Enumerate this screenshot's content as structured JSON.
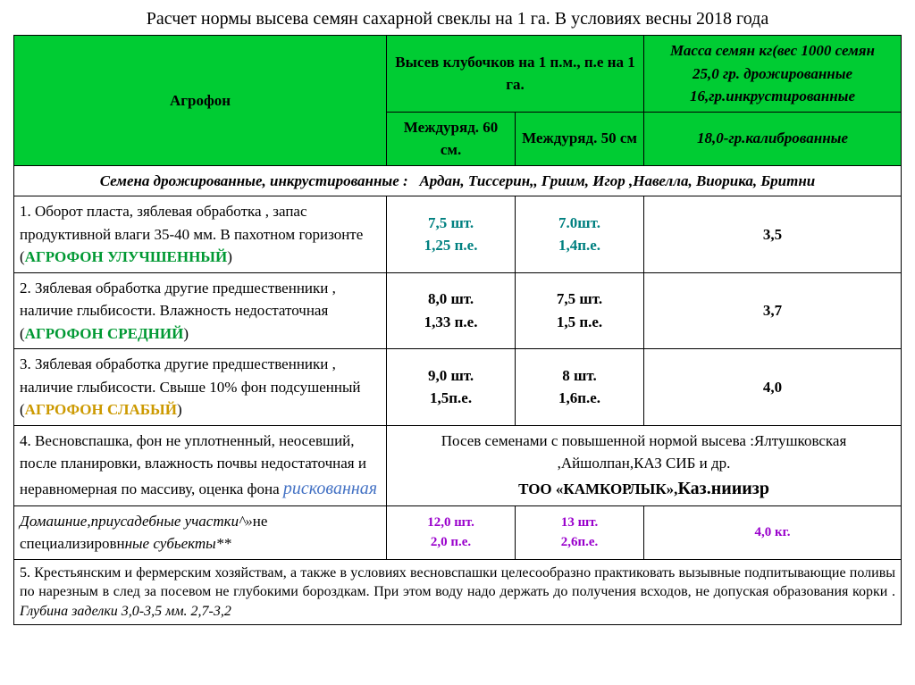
{
  "title": "Расчет нормы высева семян сахарной свеклы на 1 га. В условиях весны 2018 года",
  "colors": {
    "header_bg": "#00cc33",
    "green": "#009933",
    "teal": "#008080",
    "orange": "#cc9900",
    "purple": "#9900cc",
    "risk_blue": "#4472c4"
  },
  "header": {
    "agrofon": "Агрофон",
    "sowing": "Высев клубочков на 1 п.м., п.е на 1 га.",
    "mass_line1": "Масса семян кг(вес 1000 семян",
    "mass_line2": "25,0 гр. дрожированные",
    "mass_line3": "16,гр.инкрустированные",
    "inter60": "Междуряд. 60 см.",
    "inter50": "Междуряд. 50 см",
    "calibrated": "18,0-гр.калиброванные"
  },
  "subheader": {
    "prefix": "Семена дрожированные, инкрустированные :",
    "varieties": "Ардан,  Тиссерин,, Гриим,  Игор ,Навелла,  Виорика,   Бритни"
  },
  "rows": [
    {
      "desc_pre": "1. Оборот пласта, зяблевая обработка , запас продуктивной влаги 35-40 мм. В пахотном горизонте (",
      "fon": "АГРОФОН УЛУЧШЕННЫЙ",
      "desc_post": ")",
      "fon_color": "green-b",
      "v60_l1": "7,5 шт.",
      "v60_l2": "1,25 п.е.",
      "v50_l1": "7.0шт.",
      "v50_l2": "1,4п.е.",
      "val_color": "teal-b",
      "mass": "3,5"
    },
    {
      "desc_pre": "2. Зяблевая обработка другие предшественники , наличие глыбисости. Влажность недостаточная (",
      "fon": "АГРОФОН СРЕДНИЙ",
      "desc_post": ")",
      "fon_color": "green-b",
      "v60_l1": "8,0 шт.",
      "v60_l2": "1,33 п.е.",
      "v50_l1": "7,5 шт.",
      "v50_l2": "1,5 п.е.",
      "val_color": "",
      "mass": "3,7"
    },
    {
      "desc_pre": "3. Зяблевая обработка другие предшественники , наличие глыбисости. Свыше 10%  фон подсушенный (",
      "fon": "АГРОФОН СЛАБЫЙ",
      "desc_post": ")",
      "fon_color": "orange-b",
      "v60_l1": "9,0 шт.",
      "v60_l2": "1,5п.е.",
      "v50_l1": "8 шт.",
      "v50_l2": "1,6п.е.",
      "val_color": "",
      "mass": "4,0"
    }
  ],
  "row4": {
    "desc_main": "4. Весновспашка, фон не уплотненный, неосевший, после планировки, влажность почвы недостаточная и неравномерная по массиву, оценка фона   ",
    "risk": "рискованная",
    "merged_l1": "Посев  семенами  с повышенной нормой  высева :Ялтушковская ,Айшолпан,КАЗ СИБ и др.",
    "merged_l2_a": "ТОО «КАМКОРЛЫК»,",
    "merged_l2_b": "Каз.нииизр"
  },
  "row5": {
    "desc_ital": "Домашние,приусадебные участки^»",
    "desc_plain": "не специализировн",
    "desc_ital2": "ные  субьекты**",
    "v60_l1": "12,0 шт.",
    "v60_l2": "2,0 п.е.",
    "v50_l1": "13 шт.",
    "v50_l2": "2,6п.е.",
    "mass": "4,0 кг."
  },
  "footnote": {
    "text_a": "5.   Крестьянским и фермерским хозяйствам, а также в условиях весновспашки целесообразно практиковать вызывные подпитывающие поливы по нарезным в след за посевом не глубокими бороздкам. При этом воду надо держать до получения всходов, не допуская образования корки . ",
    "text_b": "Глубина заделки 3,0-3,5 мм.    2,7-3,2"
  }
}
